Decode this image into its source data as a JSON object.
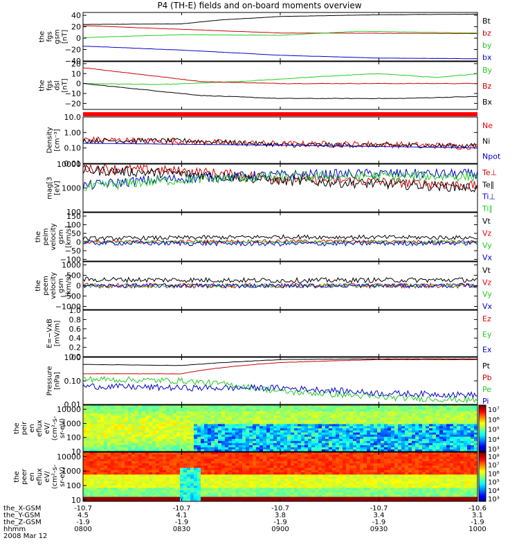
{
  "header": {
    "title": "P4 (TH-E) fields and on-board moments overview"
  },
  "chart_data": {
    "type": "line",
    "title": "P4 (TH-E) fields and on-board moments overview",
    "date": "2008 Mar 12",
    "x_range": [
      "08:00",
      "10:00"
    ],
    "x_ticks": [
      "0800",
      "0830",
      "0900",
      "0930",
      "1000"
    ],
    "orbit": {
      "rows": [
        {
          "label": "the_X-GSM",
          "values": [
            "-10.7",
            "-10.7",
            "-10.7",
            "-10.7",
            "-10.6"
          ]
        },
        {
          "label": "the_Y-GSM",
          "values": [
            "4.5",
            "4.1",
            "3.8",
            "3.4",
            "3.1"
          ]
        },
        {
          "label": "the_Z-GSM",
          "values": [
            "-1.9",
            "-1.9",
            "-1.9",
            "-1.9",
            "-1.9"
          ]
        },
        {
          "label": "hhmm",
          "values": [
            "0800",
            "0830",
            "0900",
            "0930",
            "1000"
          ]
        }
      ]
    },
    "panels": [
      {
        "ylabel": [
          "the",
          "fgs",
          "gsm",
          "[nT]"
        ],
        "log": false,
        "ylim": [
          -40,
          45
        ],
        "ticks": [
          -40,
          -20,
          0,
          20,
          40
        ],
        "tick_labels": [
          "−40",
          "−20",
          "0",
          "20",
          "40"
        ],
        "series": [
          {
            "name": "Bt",
            "color": "#000000",
            "kind": "smooth",
            "amp": 0.35,
            "x": [
              0,
              0.25,
              0.35,
              0.5,
              0.75,
              1
            ],
            "values": [
              24,
              25,
              32,
              38,
              41,
              42
            ]
          },
          {
            "name": "bz",
            "color": "#cc0000",
            "kind": "smooth",
            "amp": 0.35,
            "x": [
              0,
              0.5,
              1
            ],
            "values": [
              22,
              9,
              8
            ]
          },
          {
            "name": "by",
            "color": "#22cc22",
            "kind": "smooth",
            "amp": 0.35,
            "x": [
              0,
              0.25,
              0.5,
              0.7,
              0.8,
              1
            ],
            "values": [
              1,
              6,
              5,
              12,
              11,
              9
            ]
          },
          {
            "name": "bx",
            "color": "#0000cc",
            "kind": "smooth",
            "amp": 0.35,
            "x": [
              0,
              0.25,
              0.5,
              0.75,
              1
            ],
            "values": [
              -14,
              -21,
              -30,
              -35,
              -36
            ]
          }
        ]
      },
      {
        "ylabel": [
          "the",
          "fgs",
          "dsl",
          "[nT]"
        ],
        "log": false,
        "ylim": [
          -26,
          22
        ],
        "ticks": [
          -20,
          -10,
          0,
          10,
          20
        ],
        "tick_labels": [
          "−20",
          "−10",
          "0",
          "10",
          "20"
        ],
        "series": [
          {
            "name": "By",
            "color": "#22cc22",
            "kind": "smooth",
            "amp": 0.5,
            "x": [
              0,
              0.2,
              0.4,
              0.6,
              0.75,
              0.9,
              1
            ],
            "values": [
              0,
              -1,
              2,
              7,
              10,
              6,
              10
            ]
          },
          {
            "name": "Bz",
            "color": "#cc0000",
            "kind": "smooth",
            "amp": 0.5,
            "x": [
              0,
              0.3,
              0.5,
              1
            ],
            "values": [
              16,
              2,
              0,
              0
            ]
          },
          {
            "name": "Bx",
            "color": "#000000",
            "kind": "smooth",
            "amp": 0.5,
            "x": [
              0,
              0.3,
              0.5,
              0.8,
              1
            ],
            "values": [
              0,
              -12,
              -15,
              -15,
              -13
            ]
          }
        ]
      },
      {
        "ylabel": [
          "Density",
          "[cm⁻³]"
        ],
        "log": true,
        "ylim": [
          0.01,
          10
        ],
        "ticks": [
          0.01,
          0.1,
          1,
          10
        ],
        "tick_labels": [
          "0.01",
          "0.10",
          "1.00",
          "10.0"
        ],
        "series": [
          {
            "name": "Ne",
            "color": "#ee0000",
            "kind": "noisy",
            "amp": 0.08,
            "x": [
              0,
              0.25,
              0.5,
              0.75,
              1
            ],
            "values": [
              0.35,
              0.25,
              0.18,
              0.17,
              0.12
            ]
          },
          {
            "name": "Ni",
            "color": "#000000",
            "kind": "noisy",
            "amp": 0.06,
            "x": [
              0,
              0.25,
              0.5,
              1
            ],
            "values": [
              0.3,
              0.3,
              0.16,
              0.14
            ]
          },
          {
            "name": "Npot",
            "color": "#0000cc",
            "kind": "smooth",
            "amp": 0.02,
            "x": [
              0,
              0.5,
              1
            ],
            "values": [
              0.2,
              0.15,
              0.1
            ]
          }
        ]
      },
      {
        "ylabel": [
          "mag[3",
          "[eV]"
        ],
        "log": true,
        "ylim": [
          100,
          10000
        ],
        "ticks": [
          100,
          1000,
          10000
        ],
        "tick_labels": [
          "100",
          "1000",
          "10000"
        ],
        "series": [
          {
            "name": "Te⊥",
            "color": "#cc0000",
            "kind": "noisy",
            "amp": 0.08,
            "x": [
              0,
              0.25,
              0.5,
              0.75,
              1
            ],
            "values": [
              7000,
              5000,
              2500,
              1800,
              1200
            ]
          },
          {
            "name": "Te∥",
            "color": "#000000",
            "kind": "noisy",
            "amp": 0.08,
            "x": [
              0,
              0.25,
              0.5,
              0.75,
              1
            ],
            "values": [
              5500,
              4000,
              2000,
              1500,
              1000
            ]
          },
          {
            "name": "Ti⊥",
            "color": "#0000cc",
            "kind": "noisy",
            "amp": 0.08,
            "x": [
              0,
              0.25,
              0.5,
              0.75,
              1
            ],
            "values": [
              1200,
              2500,
              3500,
              4000,
              3800
            ]
          },
          {
            "name": "Ti∥",
            "color": "#22cc22",
            "kind": "noisy",
            "amp": 0.08,
            "x": [
              0,
              0.25,
              0.5,
              0.75,
              1
            ],
            "values": [
              1000,
              2200,
              3000,
              3200,
              3000
            ]
          }
        ]
      },
      {
        "ylabel": [
          "the",
          "peim",
          "velocity",
          "gsm",
          "[km/s]"
        ],
        "log": false,
        "ylim": [
          -110,
          170
        ],
        "ticks": [
          -100,
          -50,
          0,
          50,
          100,
          150
        ],
        "tick_labels": [
          "−100",
          "−50",
          "0",
          "50",
          "100",
          "150"
        ],
        "series": [
          {
            "name": "Vt",
            "color": "#000000",
            "kind": "noisy",
            "amp": 12,
            "x": [
              0,
              0.5,
              1
            ],
            "values": [
              20,
              30,
              25
            ]
          },
          {
            "name": "Vz",
            "color": "#ee0000",
            "kind": "noisy",
            "amp": 10,
            "x": [
              0,
              0.5,
              1
            ],
            "values": [
              0,
              5,
              0
            ]
          },
          {
            "name": "Vy",
            "color": "#22cc22",
            "kind": "noisy",
            "amp": 10,
            "x": [
              0,
              0.5,
              1
            ],
            "values": [
              0,
              0,
              0
            ]
          },
          {
            "name": "Vx",
            "color": "#0000cc",
            "kind": "noisy",
            "amp": 14,
            "x": [
              0,
              0.5,
              1
            ],
            "values": [
              -5,
              -10,
              -5
            ]
          }
        ]
      },
      {
        "ylabel": [
          "the",
          "peem",
          "velocity",
          "gsm",
          "[km/s]"
        ],
        "log": false,
        "ylim": [
          -1150,
          1150
        ],
        "ticks": [
          -1000,
          -500,
          0,
          500,
          1000
        ],
        "tick_labels": [
          "−1000",
          "−500",
          "0",
          "500",
          "1000"
        ],
        "series": [
          {
            "name": "Vt",
            "color": "#000000",
            "kind": "noisy",
            "amp": 120,
            "x": [
              0,
              0.5,
              1
            ],
            "values": [
              300,
              250,
              280
            ]
          },
          {
            "name": "Vz",
            "color": "#ee0000",
            "kind": "noisy",
            "amp": 120,
            "x": [
              0,
              0.5,
              1
            ],
            "values": [
              0,
              0,
              0
            ]
          },
          {
            "name": "Vy",
            "color": "#22cc22",
            "kind": "noisy",
            "amp": 100,
            "x": [
              0,
              0.5,
              1
            ],
            "values": [
              0,
              0,
              0
            ]
          },
          {
            "name": "Vx",
            "color": "#0000cc",
            "kind": "noisy",
            "amp": 100,
            "x": [
              0,
              0.5,
              1
            ],
            "values": [
              0,
              0,
              0
            ]
          }
        ]
      },
      {
        "ylabel": [
          "E=−VxB",
          "[mV/m]"
        ],
        "log": false,
        "ylim": [
          0,
          1
        ],
        "ticks": [
          0,
          0.2,
          0.4,
          0.6,
          0.8,
          1.0
        ],
        "tick_labels": [
          "0.0",
          "0.2",
          "0.4",
          "0.6",
          "0.8",
          "1.0"
        ],
        "series": [
          {
            "name": "Ez",
            "color": "#ee0000",
            "kind": "none",
            "amp": 0,
            "x": [
              0,
              1
            ],
            "values": [
              0,
              0
            ]
          },
          {
            "name": "Ey",
            "color": "#22cc22",
            "kind": "none",
            "amp": 0,
            "x": [
              0,
              1
            ],
            "values": [
              0,
              0
            ]
          },
          {
            "name": "Ex",
            "color": "#0000cc",
            "kind": "none",
            "amp": 0,
            "x": [
              0,
              1
            ],
            "values": [
              0,
              0
            ]
          }
        ]
      },
      {
        "ylabel": [
          "Pressure",
          "[nPa]"
        ],
        "log": true,
        "ylim": [
          0.01,
          1
        ],
        "ticks": [
          0.01,
          0.1,
          1
        ],
        "tick_labels": [
          "0.01",
          "0.10",
          "1.00"
        ],
        "series": [
          {
            "name": "Pt",
            "color": "#000000",
            "kind": "smooth",
            "amp": 0.03,
            "x": [
              0,
              0.25,
              0.5,
              0.75,
              1
            ],
            "values": [
              0.5,
              0.45,
              0.8,
              0.85,
              0.85
            ]
          },
          {
            "name": "Pb",
            "color": "#cc0000",
            "kind": "smooth",
            "amp": 0.03,
            "x": [
              0,
              0.25,
              0.5,
              0.75,
              1
            ],
            "values": [
              0.2,
              0.2,
              0.6,
              0.8,
              0.8
            ]
          },
          {
            "name": "Pe",
            "color": "#22cc22",
            "kind": "noisy",
            "amp": 0.05,
            "x": [
              0,
              0.25,
              0.5,
              0.75,
              1
            ],
            "values": [
              0.12,
              0.1,
              0.035,
              0.02,
              0.015
            ]
          },
          {
            "name": "Pi",
            "color": "#0000cc",
            "kind": "noisy",
            "amp": 0.05,
            "x": [
              0,
              0.25,
              0.5,
              0.75,
              1
            ],
            "values": [
              0.06,
              0.05,
              0.05,
              0.03,
              0.025
            ]
          }
        ]
      }
    ],
    "spectrograms": [
      {
        "ylabel": [
          "the",
          "peir",
          "en",
          "eflux",
          "eV/",
          "(cm²-s-",
          "sr-eV)"
        ],
        "ticks": [
          10,
          100,
          1000,
          10000
        ],
        "tick_labels": [
          "10",
          "100",
          "1000",
          "10000"
        ],
        "ylim": [
          10,
          20000
        ],
        "colorbar": {
          "labels": [
            "10³",
            "10⁴",
            "10⁵",
            "10⁶",
            "10⁷"
          ]
        }
      },
      {
        "ylabel": [
          "the",
          "peer",
          "en",
          "eflux",
          "eV/",
          "(cm²-s-",
          "sr-eV)"
        ],
        "ticks": [
          10,
          100,
          1000,
          10000
        ],
        "tick_labels": [
          "10",
          "100",
          "1000",
          "10000"
        ],
        "ylim": [
          8,
          20000
        ],
        "colorbar": {
          "labels": [
            "10³",
            "10⁴",
            "10⁵",
            "10⁶",
            "10⁷",
            "10⁸"
          ]
        }
      }
    ]
  }
}
